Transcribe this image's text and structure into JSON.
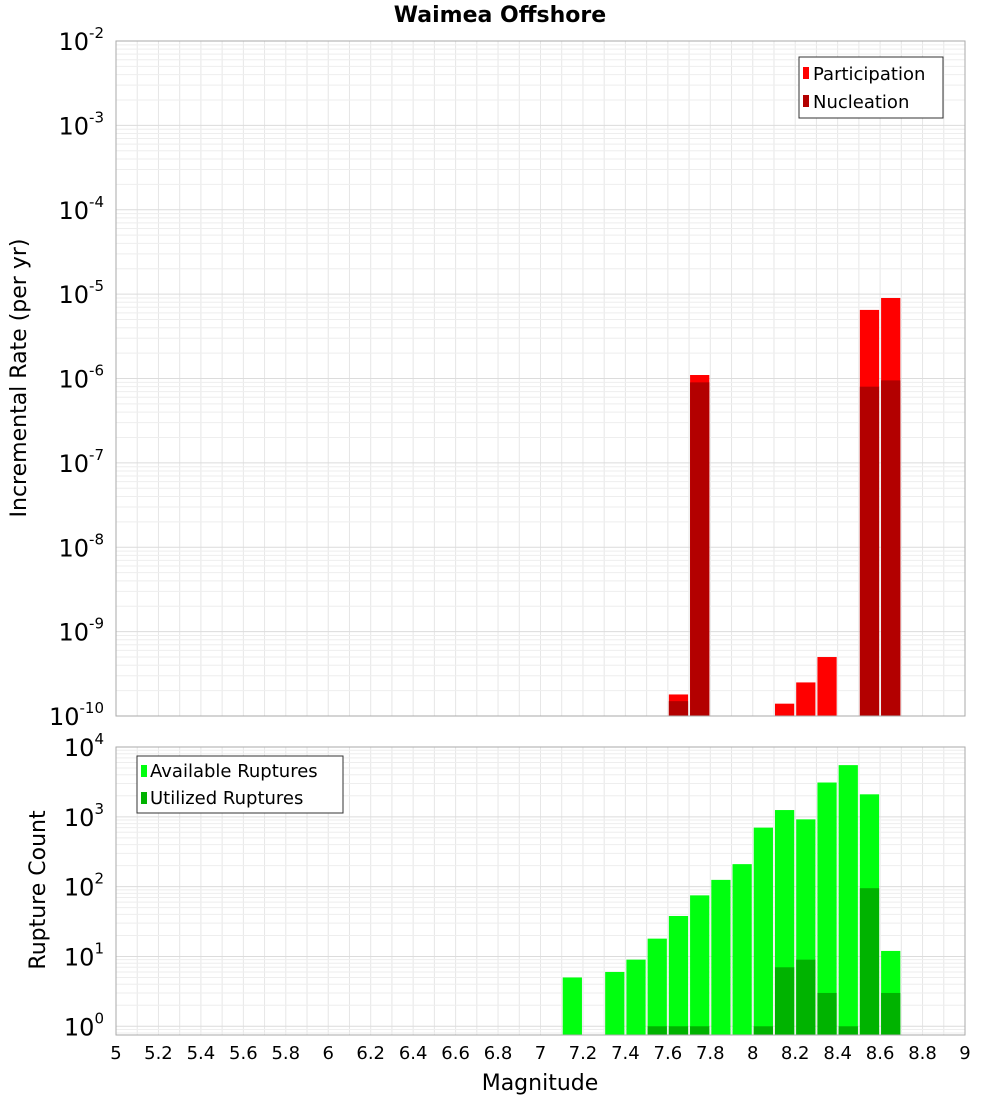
{
  "chart_data": [
    {
      "type": "bar",
      "scale": "log",
      "title": "Waimea Offshore",
      "xlabel": "Magnitude",
      "ylabel": "Incremental Rate (per yr)",
      "xlim": [
        5,
        9
      ],
      "ylim": [
        1e-10,
        0.01
      ],
      "bin_width": 0.1,
      "grid": true,
      "legend_position": "top-right",
      "y_ticks": [
        {
          "base": "10",
          "exp": "-10",
          "value": 1e-10
        },
        {
          "base": "10",
          "exp": "-9",
          "value": 1e-09
        },
        {
          "base": "10",
          "exp": "-8",
          "value": 1e-08
        },
        {
          "base": "10",
          "exp": "-7",
          "value": 1e-07
        },
        {
          "base": "10",
          "exp": "-6",
          "value": 1e-06
        },
        {
          "base": "10",
          "exp": "-5",
          "value": 1e-05
        },
        {
          "base": "10",
          "exp": "-4",
          "value": 0.0001
        },
        {
          "base": "10",
          "exp": "-3",
          "value": 0.001
        },
        {
          "base": "10",
          "exp": "-2",
          "value": 0.01
        }
      ],
      "series": [
        {
          "name": "Participation",
          "color": "#ff0000",
          "x": [
            7.65,
            7.75,
            8.15,
            8.25,
            8.35,
            8.55,
            8.65
          ],
          "values": [
            1.8e-10,
            1.1e-06,
            1.4e-10,
            2.5e-10,
            5e-10,
            6.5e-06,
            9e-06
          ]
        },
        {
          "name": "Nucleation",
          "color": "#b30000",
          "x": [
            7.65,
            7.75,
            8.55,
            8.65
          ],
          "values": [
            1.5e-10,
            9e-07,
            8e-07,
            9.5e-07
          ]
        }
      ]
    },
    {
      "type": "bar",
      "scale": "log",
      "title": "",
      "xlabel": "Magnitude",
      "ylabel": "Rupture Count",
      "xlim": [
        5,
        9
      ],
      "ylim": [
        0.75,
        10000
      ],
      "bin_width": 0.1,
      "grid": true,
      "legend_position": "top-left",
      "x_ticks": [
        "5",
        "5.2",
        "5.4",
        "5.6",
        "5.8",
        "6",
        "6.2",
        "6.4",
        "6.6",
        "6.8",
        "7",
        "7.2",
        "7.4",
        "7.6",
        "7.8",
        "8",
        "8.2",
        "8.4",
        "8.6",
        "8.8",
        "9"
      ],
      "y_ticks": [
        {
          "base": "10",
          "exp": "0",
          "value": 1
        },
        {
          "base": "10",
          "exp": "1",
          "value": 10
        },
        {
          "base": "10",
          "exp": "2",
          "value": 100
        },
        {
          "base": "10",
          "exp": "3",
          "value": 1000
        },
        {
          "base": "10",
          "exp": "4",
          "value": 10000
        }
      ],
      "series": [
        {
          "name": "Available Ruptures",
          "color": "#00ff0f",
          "x": [
            7.15,
            7.35,
            7.45,
            7.55,
            7.65,
            7.75,
            7.85,
            7.95,
            8.05,
            8.15,
            8.25,
            8.35,
            8.45,
            8.55,
            8.65
          ],
          "values": [
            5,
            6,
            9,
            18,
            38,
            75,
            125,
            210,
            700,
            1250,
            920,
            3100,
            5500,
            2100,
            12
          ]
        },
        {
          "name": "Utilized Ruptures",
          "color": "#00b300",
          "x": [
            7.55,
            7.65,
            7.75,
            8.05,
            8.15,
            8.25,
            8.35,
            8.45,
            8.55,
            8.65
          ],
          "values": [
            1,
            1,
            1,
            1,
            7,
            9,
            3,
            1,
            95,
            3
          ]
        }
      ]
    }
  ]
}
